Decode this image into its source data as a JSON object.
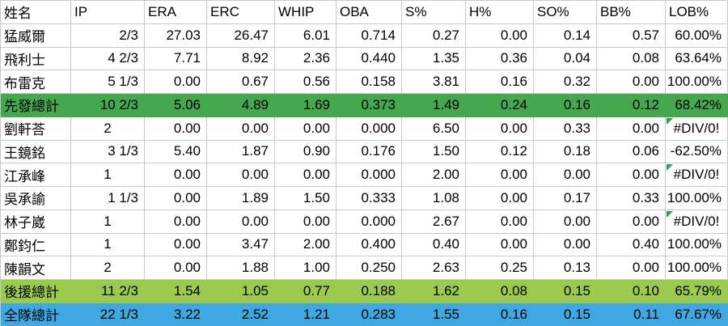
{
  "table": {
    "headers": [
      "姓名",
      "IP",
      "ERA",
      "ERC",
      "WHIP",
      "OBA",
      "S%",
      "H%",
      "SO%",
      "BB%",
      "LOB%"
    ],
    "error_value": "#DIV/0!",
    "rows": [
      {
        "type": "player",
        "cells": [
          "猛威爾",
          "2/3",
          "27.03",
          "26.47",
          "6.01",
          "0.714",
          "0.27",
          "0.00",
          "0.14",
          "0.57",
          "60.00%"
        ]
      },
      {
        "type": "player",
        "cells": [
          "飛利士",
          "4 2/3",
          "7.71",
          "8.92",
          "2.36",
          "0.440",
          "1.35",
          "0.36",
          "0.04",
          "0.08",
          "63.64%"
        ]
      },
      {
        "type": "player",
        "cells": [
          "布雷克",
          "5 1/3",
          "0.00",
          "0.67",
          "0.56",
          "0.158",
          "3.81",
          "0.16",
          "0.32",
          "0.00",
          "100.00%"
        ]
      },
      {
        "type": "starters_total",
        "cells": [
          "先發總計",
          "10 2/3",
          "5.06",
          "4.89",
          "1.69",
          "0.373",
          "1.49",
          "0.24",
          "0.16",
          "0.12",
          "68.42%"
        ]
      },
      {
        "type": "player",
        "cells": [
          "劉軒荅",
          "2",
          "0.00",
          "0.00",
          "0.00",
          "0.000",
          "6.50",
          "0.00",
          "0.33",
          "0.00",
          "#DIV/0!"
        ]
      },
      {
        "type": "player",
        "cells": [
          "王鏡銘",
          "3 1/3",
          "5.40",
          "1.87",
          "0.90",
          "0.176",
          "1.50",
          "0.12",
          "0.18",
          "0.06",
          "-62.50%"
        ]
      },
      {
        "type": "player",
        "cells": [
          "江承峰",
          "1",
          "0.00",
          "0.00",
          "0.00",
          "0.000",
          "2.00",
          "0.00",
          "0.00",
          "0.00",
          "#DIV/0!"
        ]
      },
      {
        "type": "player",
        "cells": [
          "吳承諭",
          "1 1/3",
          "0.00",
          "1.89",
          "1.50",
          "0.333",
          "1.08",
          "0.00",
          "0.17",
          "0.33",
          "100.00%"
        ]
      },
      {
        "type": "player",
        "cells": [
          "林子崴",
          "1",
          "0.00",
          "0.00",
          "0.00",
          "0.000",
          "2.67",
          "0.00",
          "0.00",
          "0.00",
          "#DIV/0!"
        ]
      },
      {
        "type": "player",
        "cells": [
          "鄭鈞仁",
          "1",
          "0.00",
          "3.47",
          "2.00",
          "0.400",
          "0.40",
          "0.00",
          "0.00",
          "0.40",
          "100.00%"
        ]
      },
      {
        "type": "player",
        "cells": [
          "陳韻文",
          "2",
          "0.00",
          "1.88",
          "1.00",
          "0.250",
          "2.63",
          "0.25",
          "0.13",
          "0.00",
          "100.00%"
        ]
      },
      {
        "type": "relievers_total",
        "cells": [
          "後援總計",
          "11 2/3",
          "1.54",
          "1.05",
          "0.77",
          "0.188",
          "1.62",
          "0.08",
          "0.15",
          "0.10",
          "65.79%"
        ]
      },
      {
        "type": "team_total",
        "cells": [
          "全隊總計",
          "22 1/3",
          "3.22",
          "2.52",
          "1.21",
          "0.283",
          "1.55",
          "0.16",
          "0.15",
          "0.11",
          "67.67%"
        ]
      }
    ]
  },
  "colors": {
    "starters_total_bg": "#46a84e",
    "relievers_total_bg": "#9cca4f",
    "team_total_bg": "#3fa8e0",
    "gridline": "#c9c9c9",
    "error_indicator_triangle": "#2e9e4f"
  }
}
